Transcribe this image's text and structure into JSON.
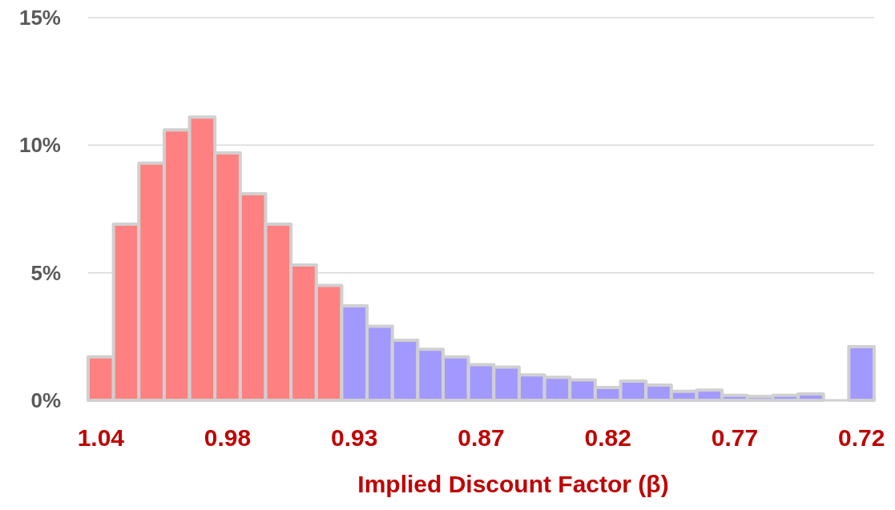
{
  "chart_data": {
    "type": "bar",
    "xlabel": "Implied Discount Factor  (β)",
    "categories": [
      "1.04",
      null,
      null,
      null,
      null,
      "0.98",
      null,
      null,
      null,
      null,
      "0.93",
      null,
      null,
      null,
      null,
      "0.87",
      null,
      null,
      null,
      null,
      "0.82",
      null,
      null,
      null,
      null,
      "0.77",
      null,
      null,
      null,
      null,
      "0.72"
    ],
    "values": [
      1.7,
      6.9,
      9.3,
      10.6,
      11.1,
      9.7,
      8.1,
      6.9,
      5.3,
      4.5,
      3.7,
      2.9,
      2.35,
      2.0,
      1.7,
      1.4,
      1.3,
      1.0,
      0.9,
      0.8,
      0.5,
      0.75,
      0.6,
      0.35,
      0.4,
      0.2,
      0.15,
      0.2,
      0.25,
      0,
      2.1
    ],
    "colors": [
      "#ff8080",
      "#ff8080",
      "#ff8080",
      "#ff8080",
      "#ff8080",
      "#ff8080",
      "#ff8080",
      "#ff8080",
      "#ff8080",
      "#ff8080",
      "#a299ff",
      "#a299ff",
      "#a299ff",
      "#a299ff",
      "#a299ff",
      "#a299ff",
      "#a299ff",
      "#a299ff",
      "#a299ff",
      "#a299ff",
      "#a299ff",
      "#a299ff",
      "#a299ff",
      "#a299ff",
      "#a299ff",
      "#a299ff",
      "#a299ff",
      "#a299ff",
      "#a299ff",
      "#a299ff",
      "#a299ff"
    ],
    "ylim": [
      0,
      15
    ],
    "yticks": [
      {
        "value": 0,
        "label": "0%"
      },
      {
        "value": 5,
        "label": "5%"
      },
      {
        "value": 10,
        "label": "10%"
      },
      {
        "value": 15,
        "label": "15%"
      }
    ],
    "grid": "y"
  }
}
